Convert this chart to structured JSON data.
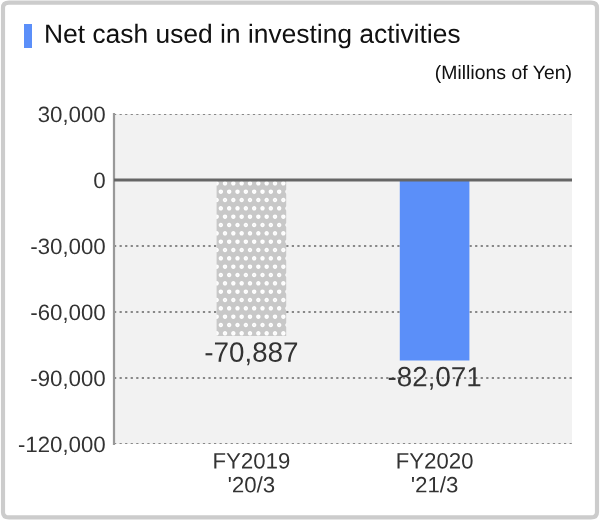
{
  "chart_data": {
    "type": "bar",
    "title": "Net cash used in investing activities",
    "ylabel": "(Millions of Yen)",
    "categories": [
      "FY2019\n'20/3",
      "FY2020\n'21/3"
    ],
    "values": [
      -70887,
      -82071
    ],
    "colors": [
      "#c8c8c8",
      "#5b8ff9"
    ],
    "value_labels": [
      "-70,887",
      "-82,071"
    ],
    "ylim": [
      -120000,
      30000
    ],
    "yticks": [
      {
        "value": 30000,
        "label": "30,000"
      },
      {
        "value": 0,
        "label": "0"
      },
      {
        "value": -30000,
        "label": "-30,000"
      },
      {
        "value": -60000,
        "label": "-60,000"
      },
      {
        "value": -90000,
        "label": "-90,000"
      },
      {
        "value": -120000,
        "label": "-120,000"
      }
    ],
    "grid": "y",
    "ref_lines": [
      {
        "axis": "y",
        "value": 0,
        "color": "#666666",
        "line_style": "solid"
      }
    ]
  }
}
